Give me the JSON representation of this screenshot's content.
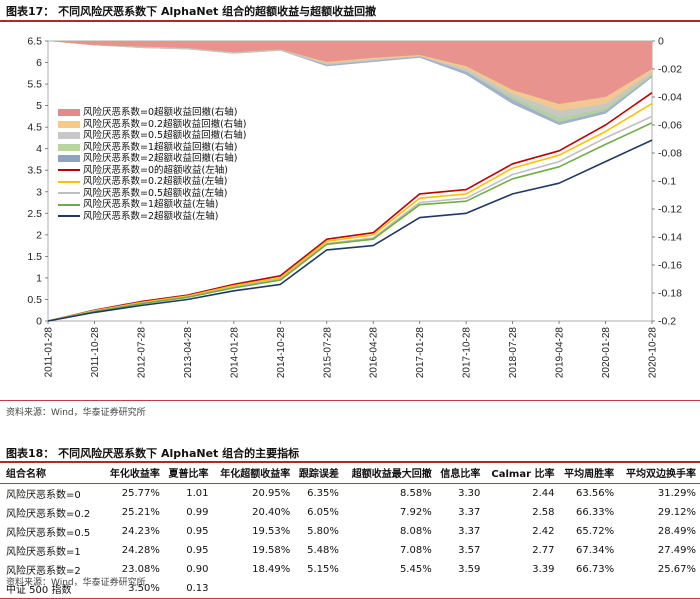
{
  "figure17": {
    "title": "图表17：  不同风险厌恶系数下 AlphaNet 组合的超额收益与超额收益回撤",
    "source": "资料来源：Wind，华泰证券研究所"
  },
  "chart_data": {
    "type": "line",
    "x": [
      "2011-01-28",
      "2011-10-28",
      "2012-07-28",
      "2013-04-28",
      "2014-01-28",
      "2014-10-28",
      "2015-07-28",
      "2016-04-28",
      "2017-01-28",
      "2017-10-28",
      "2018-07-28",
      "2019-04-28",
      "2020-01-28",
      "2020-10-28"
    ],
    "y_left": {
      "min": 0,
      "max": 6.5,
      "ticks": [
        "0",
        "0.5",
        "1",
        "1.5",
        "2",
        "2.5",
        "3",
        "3.5",
        "4",
        "4.5",
        "5",
        "5.5",
        "6",
        "6.5"
      ]
    },
    "y_right": {
      "min": -0.2,
      "max": 0,
      "ticks": [
        "0",
        "-0.02",
        "-0.04",
        "-0.06",
        "-0.08",
        "-0.1",
        "-0.12",
        "-0.14",
        "-0.16",
        "-0.18",
        "-0.2"
      ]
    },
    "series": [
      {
        "name": "风险厌恶系数=0超额收益回撤(右轴)",
        "kind": "area",
        "axis": "right",
        "color": "#e6898c",
        "values": [
          0,
          -0.003,
          -0.004,
          -0.005,
          -0.008,
          -0.006,
          -0.015,
          -0.012,
          -0.01,
          -0.018,
          -0.035,
          -0.045,
          -0.04,
          -0.02
        ]
      },
      {
        "name": "风险厌恶系数=0.2超额收益回撤(右轴)",
        "kind": "area",
        "axis": "right",
        "color": "#f6c88a",
        "values": [
          0,
          -0.003,
          -0.004,
          -0.005,
          -0.008,
          -0.006,
          -0.016,
          -0.013,
          -0.011,
          -0.02,
          -0.038,
          -0.05,
          -0.045,
          -0.022
        ]
      },
      {
        "name": "风险厌恶系数=0.5超额收益回撤(右轴)",
        "kind": "area",
        "axis": "right",
        "color": "#c8c8c8",
        "values": [
          0,
          -0.003,
          -0.005,
          -0.006,
          -0.009,
          -0.007,
          -0.017,
          -0.014,
          -0.011,
          -0.022,
          -0.04,
          -0.055,
          -0.048,
          -0.024
        ]
      },
      {
        "name": "风险厌恶系数=1超额收益回撤(右轴)",
        "kind": "area",
        "axis": "right",
        "color": "#b7d69b",
        "values": [
          0,
          -0.003,
          -0.005,
          -0.006,
          -0.009,
          -0.007,
          -0.017,
          -0.014,
          -0.011,
          -0.022,
          -0.042,
          -0.058,
          -0.05,
          -0.025
        ]
      },
      {
        "name": "风险厌恶系数=2超额收益回撤(右轴)",
        "kind": "area",
        "axis": "right",
        "color": "#8fa3bf",
        "values": [
          0,
          -0.003,
          -0.005,
          -0.006,
          -0.009,
          -0.007,
          -0.018,
          -0.015,
          -0.012,
          -0.024,
          -0.045,
          -0.06,
          -0.052,
          -0.026
        ]
      },
      {
        "name": "风险厌恶系数=0的超额收益(左轴)",
        "kind": "line",
        "axis": "left",
        "color": "#c00000",
        "values": [
          0,
          0.25,
          0.45,
          0.6,
          0.85,
          1.05,
          1.9,
          2.05,
          2.95,
          3.05,
          3.65,
          3.95,
          4.55,
          5.3
        ]
      },
      {
        "name": "风险厌恶系数=0.2超额收益(左轴)",
        "kind": "line",
        "axis": "left",
        "color": "#ffc000",
        "values": [
          0,
          0.24,
          0.43,
          0.58,
          0.82,
          1.0,
          1.85,
          2.0,
          2.85,
          2.95,
          3.55,
          3.85,
          4.4,
          5.05
        ]
      },
      {
        "name": "风险厌恶系数=0.5超额收益(左轴)",
        "kind": "line",
        "axis": "left",
        "color": "#bfbfbf",
        "values": [
          0,
          0.23,
          0.41,
          0.56,
          0.79,
          0.97,
          1.8,
          1.93,
          2.75,
          2.85,
          3.4,
          3.7,
          4.25,
          4.75
        ]
      },
      {
        "name": "风险厌恶系数=1超额收益(左轴)",
        "kind": "line",
        "axis": "left",
        "color": "#70ad47",
        "values": [
          0,
          0.22,
          0.4,
          0.55,
          0.77,
          0.95,
          1.78,
          1.9,
          2.7,
          2.78,
          3.3,
          3.58,
          4.1,
          4.6
        ]
      },
      {
        "name": "风险厌恶系数=2超额收益(左轴)",
        "kind": "line",
        "axis": "left",
        "color": "#203864",
        "values": [
          0,
          0.2,
          0.36,
          0.5,
          0.7,
          0.85,
          1.65,
          1.75,
          2.4,
          2.5,
          2.95,
          3.2,
          3.7,
          4.2
        ]
      }
    ]
  },
  "figure18": {
    "title": "图表18：  不同风险厌恶系数下 AlphaNet 组合的主要指标",
    "source": "资料来源：Wind，华泰证券研究所",
    "columns": [
      "组合名称",
      "年化收益率",
      "夏普比率",
      "年化超额收益率",
      "跟踪误差",
      "超额收益最大回撤",
      "信息比率",
      "Calmar 比率",
      "平均周胜率",
      "平均双边换手率"
    ],
    "rows": [
      [
        "风险厌恶系数=0",
        "25.77%",
        "1.01",
        "20.95%",
        "6.35%",
        "8.58%",
        "3.30",
        "2.44",
        "63.56%",
        "31.29%"
      ],
      [
        "风险厌恶系数=0.2",
        "25.21%",
        "0.99",
        "20.40%",
        "6.05%",
        "7.92%",
        "3.37",
        "2.58",
        "66.33%",
        "29.12%"
      ],
      [
        "风险厌恶系数=0.5",
        "24.23%",
        "0.95",
        "19.53%",
        "5.80%",
        "8.08%",
        "3.37",
        "2.42",
        "65.72%",
        "28.49%"
      ],
      [
        "风险厌恶系数=1",
        "24.28%",
        "0.95",
        "19.58%",
        "5.48%",
        "7.08%",
        "3.57",
        "2.77",
        "67.34%",
        "27.49%"
      ],
      [
        "风险厌恶系数=2",
        "23.08%",
        "0.90",
        "18.49%",
        "5.15%",
        "5.45%",
        "3.59",
        "3.39",
        "66.73%",
        "25.67%"
      ],
      [
        "中证 500 指数",
        "3.50%",
        "0.13",
        "",
        "",
        "",
        "",
        "",
        "",
        ""
      ]
    ]
  }
}
